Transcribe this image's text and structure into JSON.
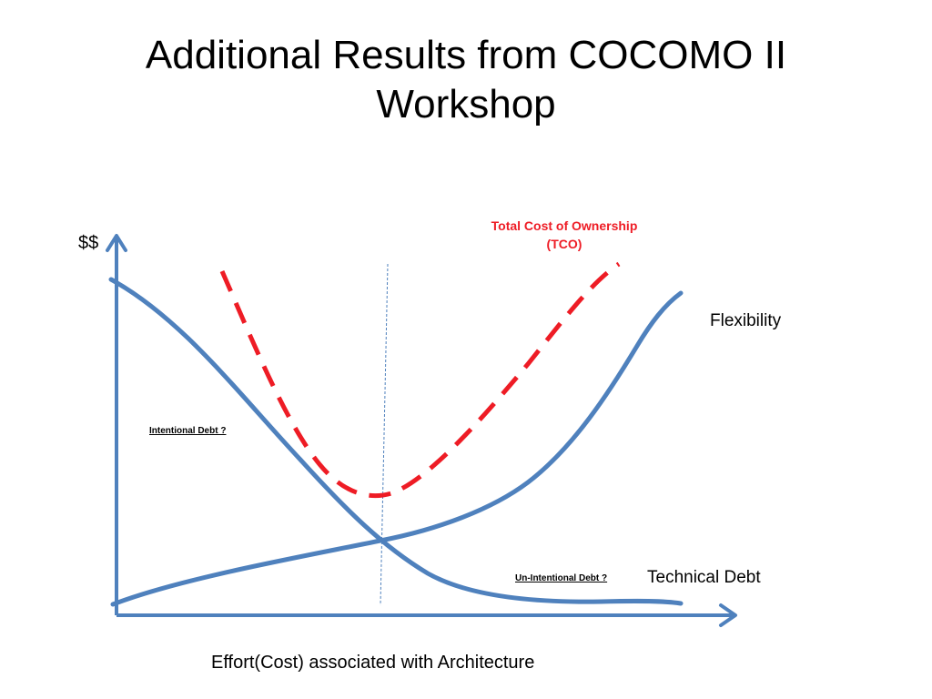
{
  "title": {
    "line1": "Additional Results from COCOMO II",
    "line2": "Workshop"
  },
  "diagram": {
    "y_axis_label": "$$",
    "x_axis_label": "Effort(Cost) associated with Architecture",
    "tco_label": {
      "line1": "Total Cost of Ownership",
      "line2": "(TCO)"
    },
    "flexibility_label": "Flexibility",
    "technical_debt_label": "Technical Debt",
    "intentional_debt_label": "Intentional Debt ?",
    "unintentional_debt_label": "Un-Intentional Debt ?",
    "colors": {
      "axis": "#4f81bd",
      "curve": "#4f81bd",
      "tco": "#ee1c25",
      "divider": "#4f81bd"
    }
  }
}
